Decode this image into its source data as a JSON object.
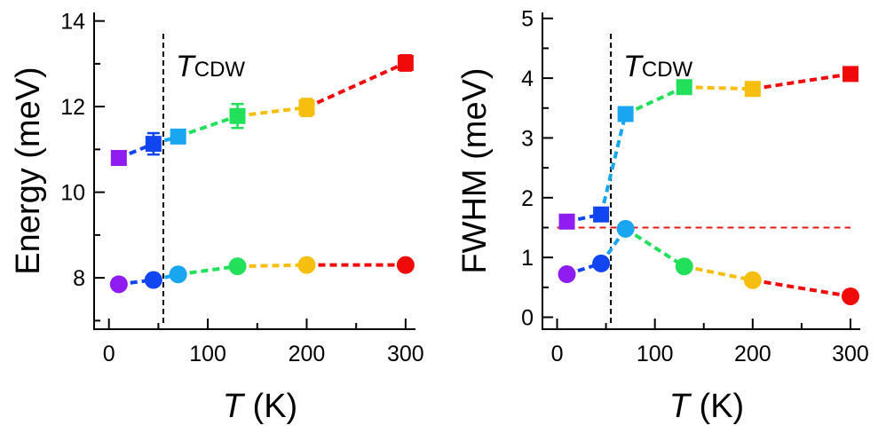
{
  "chart_data": [
    {
      "type": "scatter",
      "ylabel": "Energy (meV)",
      "xlabel_italic": "T",
      "xlabel_unit": " (K)",
      "xlim": [
        -15,
        310
      ],
      "ylim": [
        6.8,
        14.2
      ],
      "xticks": [
        0,
        100,
        200,
        300
      ],
      "yticks": [
        8,
        10,
        12,
        14
      ],
      "xtick_minor": [
        50,
        150,
        250
      ],
      "ytick_minor": [
        7,
        9,
        11,
        13
      ],
      "tcdw": {
        "x": 55,
        "label_main": "T",
        "label_sub": "CDW"
      },
      "point_colors": [
        "#8f1cf0",
        "#1245f2",
        "#19a6f0",
        "#22e05a",
        "#f6bf10",
        "#f00a0a"
      ],
      "series": [
        {
          "marker": "square",
          "x": [
            10,
            45,
            70,
            130,
            200,
            300
          ],
          "y": [
            10.8,
            11.13,
            11.3,
            11.78,
            11.98,
            13.02
          ],
          "err": [
            0.12,
            0.25,
            0.15,
            0.28,
            0.2,
            0.18
          ]
        },
        {
          "marker": "circle",
          "x": [
            10,
            45,
            70,
            130,
            200,
            300
          ],
          "y": [
            7.85,
            7.95,
            8.08,
            8.27,
            8.3,
            8.3
          ],
          "err": [
            0,
            0,
            0,
            0,
            0,
            0
          ]
        }
      ],
      "reference_lines": []
    },
    {
      "type": "scatter",
      "ylabel": "FWHM (meV)",
      "xlabel_italic": "T",
      "xlabel_unit": " (K)",
      "xlim": [
        -15,
        310
      ],
      "ylim": [
        -0.2,
        5.1
      ],
      "xticks": [
        0,
        100,
        200,
        300
      ],
      "yticks": [
        0,
        1,
        2,
        3,
        4,
        5
      ],
      "xtick_minor": [
        50,
        150,
        250
      ],
      "ytick_minor": [
        0.5,
        1.5,
        2.5,
        3.5,
        4.5
      ],
      "tcdw": {
        "x": 55,
        "label_main": "T",
        "label_sub": "CDW"
      },
      "point_colors": [
        "#8f1cf0",
        "#1245f2",
        "#19a6f0",
        "#22e05a",
        "#f6bf10",
        "#f00a0a"
      ],
      "series": [
        {
          "marker": "square",
          "x": [
            10,
            45,
            70,
            130,
            200,
            300
          ],
          "y": [
            1.6,
            1.72,
            3.4,
            3.85,
            3.82,
            4.07
          ],
          "err": [
            0,
            0,
            0,
            0,
            0,
            0
          ]
        },
        {
          "marker": "circle",
          "x": [
            10,
            45,
            70,
            130,
            200,
            300
          ],
          "y": [
            0.72,
            0.9,
            1.48,
            0.85,
            0.62,
            0.35
          ],
          "err": [
            0,
            0,
            0,
            0,
            0,
            0
          ]
        }
      ],
      "reference_lines": [
        {
          "y": 1.5,
          "color": "#e81818"
        }
      ]
    }
  ]
}
